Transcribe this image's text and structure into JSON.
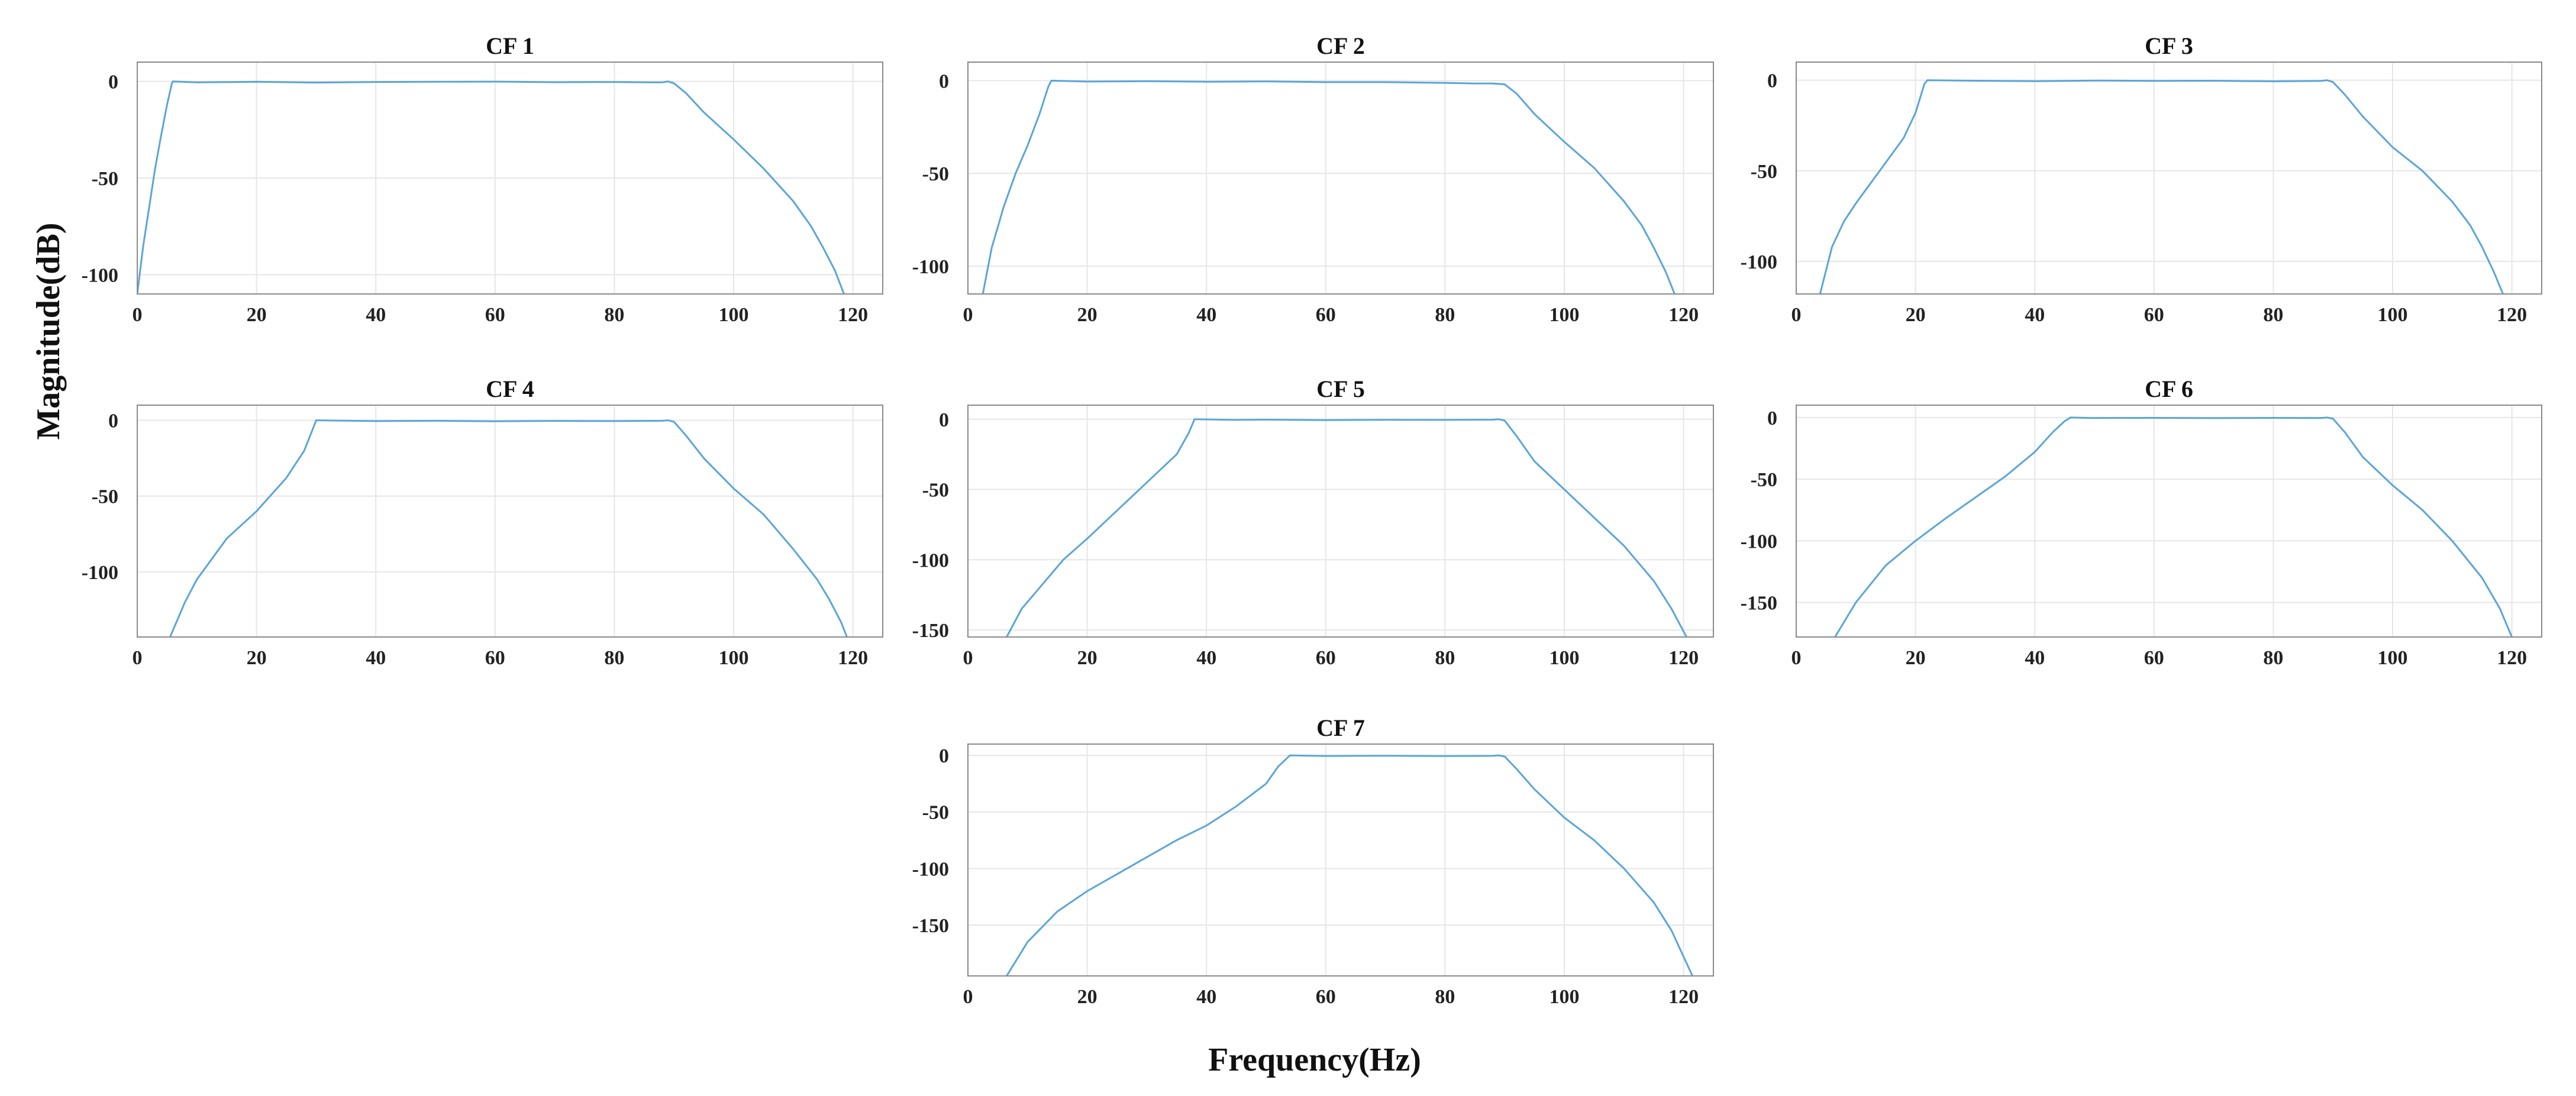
{
  "figure": {
    "xlabel": "Frequency(Hz)",
    "ylabel": "Magnitude(dB)"
  },
  "chart_data": [
    {
      "type": "line",
      "title": "CF 1",
      "xlim": [
        0,
        125
      ],
      "ylim": [
        -110,
        10
      ],
      "xticks": [
        0,
        20,
        40,
        60,
        80,
        100,
        120
      ],
      "yticks": [
        0,
        -50,
        -100
      ],
      "grid": true,
      "x": [
        0,
        1,
        2,
        3,
        4,
        5,
        5.8,
        6,
        10,
        20,
        30,
        40,
        50,
        60,
        70,
        80,
        86,
        88,
        89,
        90,
        92,
        95,
        100,
        105,
        110,
        113,
        115,
        117,
        118.5
      ],
      "y": [
        -110,
        -85,
        -65,
        -45,
        -28,
        -12,
        -1,
        0,
        -0.5,
        -0.2,
        -0.6,
        -0.3,
        -0.2,
        -0.1,
        -0.4,
        -0.3,
        -0.5,
        -0.5,
        0,
        -1,
        -6,
        -16,
        -30,
        -45,
        -62,
        -75,
        -86,
        -98,
        -110
      ]
    },
    {
      "type": "line",
      "title": "CF 2",
      "xlim": [
        0,
        125
      ],
      "ylim": [
        -115,
        10
      ],
      "xticks": [
        0,
        20,
        40,
        60,
        80,
        100,
        120
      ],
      "yticks": [
        0,
        -50,
        -100
      ],
      "grid": true,
      "x": [
        2.5,
        4,
        6,
        8,
        10,
        12,
        13.5,
        14,
        20,
        30,
        40,
        50,
        60,
        70,
        80,
        85,
        88,
        90,
        92,
        95,
        100,
        105,
        110,
        113,
        115,
        117,
        118.5
      ],
      "y": [
        -115,
        -90,
        -68,
        -50,
        -35,
        -18,
        -3,
        0,
        -0.5,
        -0.3,
        -0.6,
        -0.4,
        -0.8,
        -0.8,
        -1.2,
        -1.5,
        -1.5,
        -2,
        -7,
        -18,
        -33,
        -47,
        -65,
        -78,
        -90,
        -103,
        -115
      ]
    },
    {
      "type": "line",
      "title": "CF 3",
      "xlim": [
        0,
        125
      ],
      "ylim": [
        -118,
        10
      ],
      "xticks": [
        0,
        20,
        40,
        60,
        80,
        100,
        120
      ],
      "yticks": [
        0,
        -50,
        -100
      ],
      "grid": true,
      "x": [
        4,
        6,
        8,
        10,
        14,
        18,
        20,
        21.5,
        22,
        30,
        40,
        50,
        60,
        70,
        80,
        88,
        89,
        90,
        92,
        95,
        100,
        105,
        110,
        113,
        115,
        117,
        118.5
      ],
      "y": [
        -118,
        -92,
        -78,
        -68,
        -50,
        -32,
        -18,
        -2,
        0,
        -0.3,
        -0.5,
        -0.2,
        -0.4,
        -0.3,
        -0.6,
        -0.4,
        0,
        -1,
        -8,
        -20,
        -37,
        -50,
        -67,
        -80,
        -92,
        -106,
        -118
      ]
    },
    {
      "type": "line",
      "title": "CF 4",
      "xlim": [
        0,
        125
      ],
      "ylim": [
        -143,
        10
      ],
      "xticks": [
        0,
        20,
        40,
        60,
        80,
        100,
        120
      ],
      "yticks": [
        0,
        -50,
        -100
      ],
      "grid": true,
      "x": [
        5.5,
        8,
        10,
        15,
        20,
        25,
        28,
        29.5,
        30,
        40,
        50,
        60,
        70,
        80,
        88,
        89,
        90,
        92,
        95,
        100,
        105,
        110,
        114,
        116,
        118,
        119
      ],
      "y": [
        -143,
        -120,
        -105,
        -78,
        -60,
        -38,
        -20,
        -5,
        0,
        -0.5,
        -0.3,
        -0.6,
        -0.4,
        -0.5,
        -0.3,
        0,
        -1,
        -10,
        -25,
        -45,
        -62,
        -85,
        -105,
        -118,
        -133,
        -143
      ]
    },
    {
      "type": "line",
      "title": "CF 5",
      "xlim": [
        0,
        125
      ],
      "ylim": [
        -155,
        10
      ],
      "xticks": [
        0,
        20,
        40,
        60,
        80,
        100,
        120
      ],
      "yticks": [
        0,
        -50,
        -100,
        -150
      ],
      "grid": true,
      "x": [
        6.5,
        9,
        12,
        16,
        20,
        25,
        30,
        35,
        37,
        38,
        45,
        50,
        60,
        70,
        80,
        88,
        89,
        90,
        92,
        95,
        100,
        105,
        110,
        115,
        118,
        120.5
      ],
      "y": [
        -155,
        -135,
        -120,
        -100,
        -85,
        -65,
        -45,
        -25,
        -10,
        0,
        -0.5,
        -0.3,
        -0.6,
        -0.4,
        -0.5,
        -0.3,
        0,
        -1,
        -12,
        -30,
        -50,
        -70,
        -90,
        -115,
        -135,
        -155
      ]
    },
    {
      "type": "line",
      "title": "CF 6",
      "xlim": [
        0,
        125
      ],
      "ylim": [
        -178,
        10
      ],
      "xticks": [
        0,
        20,
        40,
        60,
        80,
        100,
        120
      ],
      "yticks": [
        0,
        -50,
        -100,
        -150
      ],
      "grid": true,
      "x": [
        6.5,
        10,
        15,
        20,
        25,
        30,
        35,
        40,
        43,
        45,
        46,
        50,
        60,
        70,
        80,
        88,
        89,
        90,
        92,
        95,
        100,
        105,
        110,
        115,
        118,
        120
      ],
      "y": [
        -178,
        -150,
        -120,
        -100,
        -82,
        -65,
        -48,
        -28,
        -12,
        -3,
        0,
        -0.4,
        -0.3,
        -0.5,
        -0.3,
        -0.4,
        0,
        -1,
        -12,
        -32,
        -55,
        -75,
        -100,
        -130,
        -155,
        -178
      ]
    },
    {
      "type": "line",
      "title": "CF 7",
      "xlim": [
        0,
        125
      ],
      "ylim": [
        -195,
        10
      ],
      "xticks": [
        0,
        20,
        40,
        60,
        80,
        100,
        120
      ],
      "yticks": [
        0,
        -50,
        -100,
        -150
      ],
      "grid": true,
      "x": [
        6.5,
        10,
        15,
        20,
        25,
        30,
        35,
        40,
        45,
        50,
        52,
        54,
        60,
        70,
        80,
        88,
        89,
        90,
        92,
        95,
        100,
        105,
        110,
        115,
        118,
        120,
        121.5
      ],
      "y": [
        -195,
        -165,
        -138,
        -120,
        -105,
        -90,
        -75,
        -62,
        -45,
        -25,
        -10,
        0,
        -0.5,
        -0.3,
        -0.6,
        -0.4,
        0,
        -1,
        -12,
        -30,
        -55,
        -75,
        -100,
        -130,
        -155,
        -178,
        -195
      ]
    }
  ]
}
